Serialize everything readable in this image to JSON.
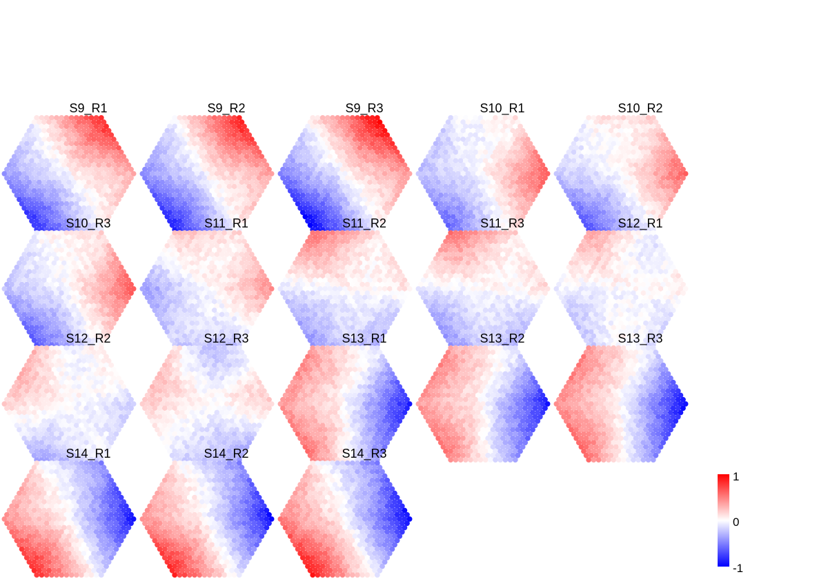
{
  "chart_data": {
    "type": "heatmap",
    "layout": "small multiples, hexagonal spot grids",
    "colorscale": {
      "low": "#0000ff",
      "mid": "#ffffff",
      "high": "#ff0000",
      "range": [
        -1,
        1
      ]
    },
    "legend": {
      "position": "bottom-right",
      "ticks": [
        "1",
        "0",
        "-1"
      ]
    },
    "panels": [
      {
        "label": "S9_R1",
        "pattern": {
          "ux": -0.55,
          "uy": 0.35,
          "band": 0.9,
          "neg_corner": "right",
          "pos_corner": "left"
        }
      },
      {
        "label": "S9_R2",
        "pattern": {
          "ux": -0.6,
          "uy": 0.35,
          "band": 0.9,
          "neg_corner": "right",
          "pos_corner": "left"
        }
      },
      {
        "label": "S9_R3",
        "pattern": {
          "ux": -0.6,
          "uy": 0.4,
          "band": 0.95,
          "neg_corner": "right",
          "pos_corner": "left"
        }
      },
      {
        "label": "S10_R1",
        "pattern": {
          "ux": -0.6,
          "uy": 0.25,
          "band": 0.7,
          "neg_corner": "upper-right",
          "pos_corner": "left"
        }
      },
      {
        "label": "S10_R2",
        "pattern": {
          "ux": -0.55,
          "uy": 0.35,
          "band": 0.7,
          "neg_corner": "upper-right",
          "pos_corner": "left"
        }
      },
      {
        "label": "S10_R3",
        "pattern": {
          "ux": -0.55,
          "uy": 0.3,
          "band": 0.75,
          "neg_corner": "upper-right",
          "pos_corner": "left"
        }
      },
      {
        "label": "S11_R1",
        "pattern": {
          "ux": -0.4,
          "uy": 0.45,
          "band": 0.65,
          "neg_corner": "upper-right",
          "pos_corner": "lower-left"
        }
      },
      {
        "label": "S11_R2",
        "pattern": {
          "ux": -0.1,
          "uy": 0.7,
          "band": 0.6,
          "neg_corner": "upper-right",
          "pos_corner": "bottom"
        }
      },
      {
        "label": "S11_R3",
        "pattern": {
          "ux": -0.1,
          "uy": 0.7,
          "band": 0.6,
          "neg_corner": "upper-right",
          "pos_corner": "bottom"
        }
      },
      {
        "label": "S12_R1",
        "pattern": {
          "ux": -0.1,
          "uy": 0.55,
          "band": 0.5,
          "neg_corner": "upper-right",
          "pos_corner": "bottom"
        }
      },
      {
        "label": "S12_R2",
        "pattern": {
          "ux": 0.2,
          "uy": 0.55,
          "band": 0.55,
          "neg_corner": "top",
          "pos_corner": "lower-right"
        }
      },
      {
        "label": "S12_R3",
        "pattern": {
          "ux": 0.35,
          "uy": 0.45,
          "band": 0.4,
          "neg_corner": "top",
          "pos_corner": "right"
        }
      },
      {
        "label": "S13_R1",
        "pattern": {
          "ux": 0.75,
          "uy": -0.05,
          "band": 0.75,
          "neg_corner": "left",
          "pos_corner": "upper-right"
        }
      },
      {
        "label": "S13_R2",
        "pattern": {
          "ux": 0.75,
          "uy": -0.05,
          "band": 0.75,
          "neg_corner": "left",
          "pos_corner": "upper-right"
        }
      },
      {
        "label": "S13_R3",
        "pattern": {
          "ux": 0.75,
          "uy": -0.05,
          "band": 0.8,
          "neg_corner": "left",
          "pos_corner": "upper-right"
        }
      },
      {
        "label": "S14_R1",
        "pattern": {
          "ux": 0.65,
          "uy": -0.3,
          "band": 0.9,
          "neg_corner": "left",
          "pos_corner": "upper-right"
        }
      },
      {
        "label": "S14_R2",
        "pattern": {
          "ux": 0.65,
          "uy": -0.3,
          "band": 0.9,
          "neg_corner": "left",
          "pos_corner": "upper-right"
        }
      },
      {
        "label": "S14_R3",
        "pattern": {
          "ux": 0.65,
          "uy": -0.3,
          "band": 0.95,
          "neg_corner": "left",
          "pos_corner": "upper-right"
        }
      }
    ]
  }
}
